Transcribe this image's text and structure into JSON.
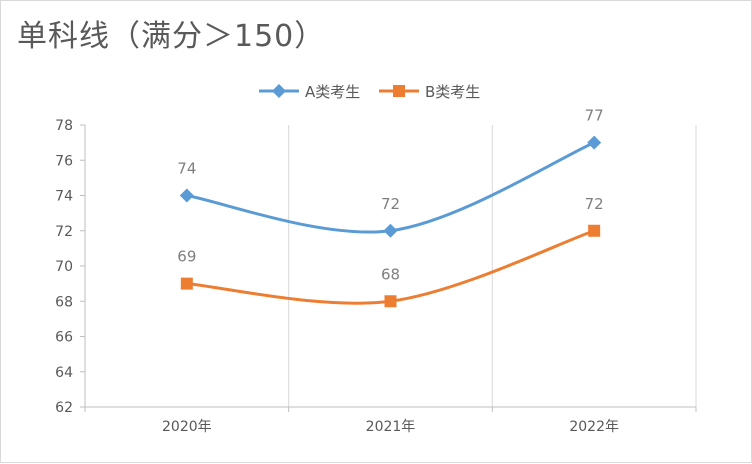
{
  "chart_data": {
    "type": "line",
    "title": "单科线（满分＞150）",
    "categories": [
      "2020年",
      "2021年",
      "2022年"
    ],
    "series": [
      {
        "name": "A类考生",
        "values": [
          74,
          72,
          77
        ],
        "color": "#5b9bd5",
        "marker": "diamond"
      },
      {
        "name": "B类考生",
        "values": [
          69,
          68,
          72
        ],
        "color": "#ed7d31",
        "marker": "square"
      }
    ],
    "ylim": [
      62,
      78
    ],
    "yticks": [
      62,
      64,
      66,
      68,
      70,
      72,
      74,
      76,
      78
    ],
    "smooth": true,
    "data_labels": true,
    "grid": "vertical",
    "legend": "top"
  }
}
